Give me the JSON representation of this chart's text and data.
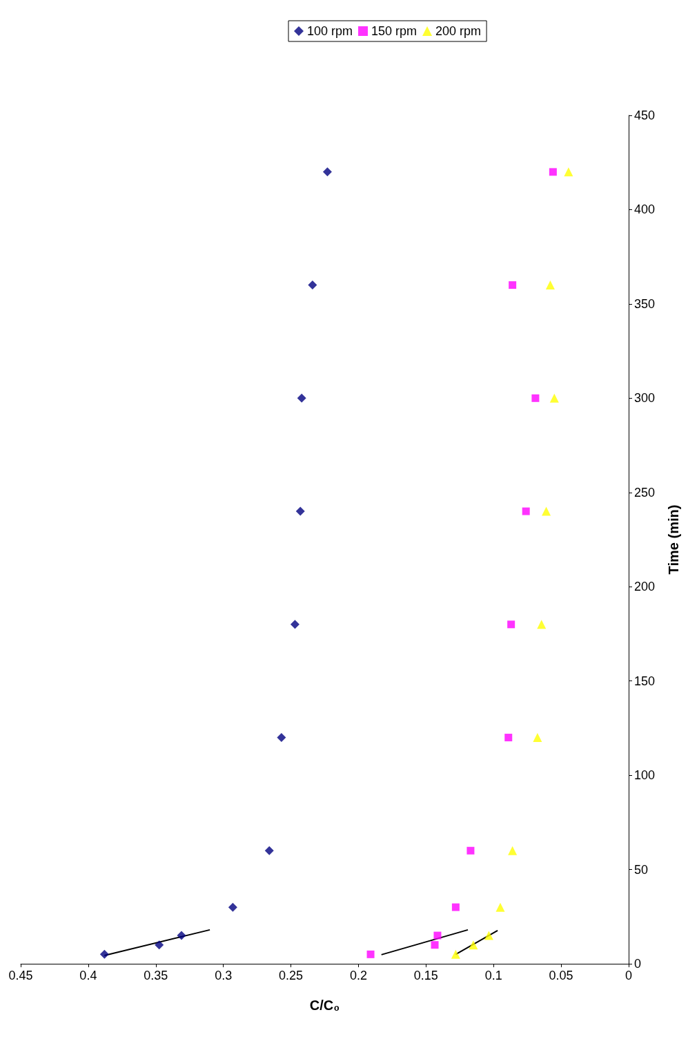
{
  "chart_data": {
    "type": "scatter",
    "xlabel": "C/C₀",
    "ylabel": "Time (min)",
    "xlim": [
      0.45,
      0
    ],
    "xticks": [
      0,
      0.05,
      0.1,
      0.15,
      0.2,
      0.25,
      0.3,
      0.35,
      0.4,
      0.45
    ],
    "ylim": [
      0,
      450
    ],
    "yticks": [
      0,
      50,
      100,
      150,
      200,
      250,
      300,
      350,
      400,
      450
    ],
    "grid": false,
    "legend": "top",
    "series": [
      {
        "name": "100 rpm",
        "color": "#000080",
        "marker": "diamond",
        "x": [
          0.388,
          0.3475,
          0.331,
          0.293,
          0.266,
          0.257,
          0.247,
          0.243,
          0.242,
          0.234,
          0.223
        ],
        "values": [
          5,
          10,
          15,
          30,
          60,
          120,
          180,
          240,
          300,
          360,
          420
        ]
      },
      {
        "name": "150 rpm",
        "color": "#ff00ff",
        "marker": "square",
        "x": [
          0.191,
          0.1435,
          0.1415,
          0.128,
          0.117,
          0.089,
          0.087,
          0.076,
          0.069,
          0.086,
          0.056
        ],
        "values": [
          5,
          10,
          15,
          30,
          60,
          120,
          180,
          240,
          300,
          360,
          420
        ]
      },
      {
        "name": "200 rpm",
        "color": "#ffff00",
        "marker": "triangle",
        "x": [
          0.128,
          0.115,
          0.1035,
          0.095,
          0.086,
          0.0675,
          0.0645,
          0.061,
          0.055,
          0.058,
          0.0445
        ],
        "values": [
          5,
          10,
          15,
          30,
          60,
          120,
          180,
          240,
          300,
          360,
          420
        ]
      },
      {
        "type": "line",
        "color": "#000000",
        "marker": "none",
        "x": [
          0.388,
          0.31
        ],
        "values": [
          4.4,
          18
        ]
      },
      {
        "type": "line",
        "color": "#000000",
        "marker": "none",
        "x": [
          0.183,
          0.119
        ],
        "values": [
          4.8,
          18
        ]
      },
      {
        "type": "line",
        "color": "#000000",
        "marker": "none",
        "x": [
          0.128,
          0.097
        ],
        "values": [
          5,
          17.6
        ]
      }
    ]
  }
}
